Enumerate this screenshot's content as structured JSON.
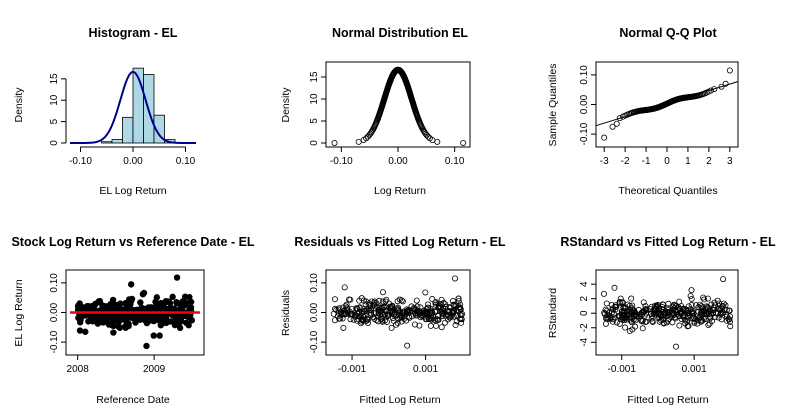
{
  "chart_data": [
    {
      "type": "histogram",
      "title": "Histogram -  EL",
      "xlabel": "EL Log Return",
      "ylabel": "Density",
      "xlim": [
        -0.12,
        0.12
      ],
      "ylim": [
        0,
        18
      ],
      "xticks": [
        -0.1,
        0.0,
        0.1
      ],
      "xtick_labels": [
        "-0.10",
        "0.00",
        "0.10"
      ],
      "yticks": [
        0,
        5,
        10,
        15
      ],
      "ytick_labels": [
        "0",
        "5",
        "10",
        "15"
      ],
      "bins": [
        {
          "x0": -0.06,
          "x1": -0.04,
          "density": 0.3
        },
        {
          "x0": -0.04,
          "x1": -0.02,
          "density": 0.8
        },
        {
          "x0": -0.02,
          "x1": 0.0,
          "density": 6.0
        },
        {
          "x0": 0.0,
          "x1": 0.02,
          "density": 17.5
        },
        {
          "x0": 0.02,
          "x1": 0.04,
          "density": 16.0
        },
        {
          "x0": 0.04,
          "x1": 0.06,
          "density": 6.5
        },
        {
          "x0": 0.06,
          "x1": 0.08,
          "density": 0.8
        }
      ],
      "curve": {
        "type": "normal",
        "mean": 0.0,
        "sd": 0.024
      },
      "colors": {
        "bars": "#add8e6",
        "curve": "#00008b"
      }
    },
    {
      "type": "scatter",
      "title": "Normal Distribution EL",
      "xlabel": "Log Return",
      "ylabel": "Density",
      "xlim": [
        -0.12,
        0.12
      ],
      "ylim": [
        0,
        17.5
      ],
      "xticks": [
        -0.1,
        0.0,
        0.1
      ],
      "xtick_labels": [
        "-0.10",
        "0.00",
        "0.10"
      ],
      "yticks": [
        0,
        5,
        10,
        15
      ],
      "ytick_labels": [
        "0",
        "5",
        "10",
        "15"
      ],
      "distribution": {
        "mean": 0.0,
        "sd": 0.024
      },
      "x_points": [
        -0.112,
        0.115
      ],
      "grid_points": 260,
      "marker": "open-circle"
    },
    {
      "type": "scatter",
      "title": "Normal Q-Q Plot",
      "xlabel": "Theoretical Quantiles",
      "ylabel": "Sample Quantiles",
      "xlim": [
        -3.2,
        3.2
      ],
      "ylim": [
        -0.13,
        0.13
      ],
      "xticks": [
        -3,
        -2,
        -1,
        0,
        1,
        2,
        3
      ],
      "xtick_labels": [
        "-3",
        "-2",
        "-1",
        "0",
        "1",
        "2",
        "3"
      ],
      "yticks": [
        -0.1,
        0.0,
        0.1
      ],
      "ytick_labels": [
        "-0.10",
        "0.00",
        "0.10"
      ],
      "reference_line": {
        "intercept": 0.003,
        "slope": 0.022
      },
      "extreme_points": [
        [
          -3.0,
          -0.112
        ],
        [
          -2.6,
          -0.075
        ],
        [
          -2.4,
          -0.065
        ],
        [
          2.6,
          0.06
        ],
        [
          2.8,
          0.07
        ],
        [
          3.0,
          0.115
        ]
      ],
      "n_points": 140,
      "marker": "open-circle"
    },
    {
      "type": "scatter",
      "title": "Stock Log Return vs Reference Date - EL",
      "xlabel": "Reference Date",
      "ylabel": "EL Log Return",
      "xlim": [
        2007.9,
        2009.6
      ],
      "ylim": [
        -0.13,
        0.13
      ],
      "xticks": [
        2008,
        2009
      ],
      "xtick_labels": [
        "2008",
        "2009"
      ],
      "yticks": [
        -0.1,
        0.0,
        0.1
      ],
      "ytick_labels": [
        "-0.10",
        "0.00",
        "0.10"
      ],
      "x_range": [
        2008.0,
        2009.5
      ],
      "extreme_points": [
        [
          2008.1,
          -0.065
        ],
        [
          2008.7,
          0.095
        ],
        [
          2009.3,
          0.118
        ],
        [
          2008.9,
          -0.113
        ]
      ],
      "n_points": 330,
      "fit_line": {
        "intercept": 0.0,
        "slope": 0.0,
        "color": "#ff0000"
      },
      "marker": "filled-circle"
    },
    {
      "type": "scatter",
      "title": "Residuals vs Fitted Log Return - EL",
      "xlabel": "Fitted Log Return",
      "ylabel": "Residuals",
      "xlim": [
        -0.0016,
        0.0021
      ],
      "ylim": [
        -0.13,
        0.13
      ],
      "xticks": [
        -0.001,
        0.001
      ],
      "xtick_labels": [
        "-0.001",
        "0.001"
      ],
      "yticks": [
        -0.1,
        0.0,
        0.1
      ],
      "ytick_labels": [
        "-0.10",
        "0.00",
        "0.10"
      ],
      "x_range": [
        -0.0015,
        0.002
      ],
      "extreme_points": [
        [
          0.0018,
          0.115
        ],
        [
          0.0005,
          -0.112
        ],
        [
          -0.0012,
          0.085
        ]
      ],
      "n_points": 330,
      "marker": "open-circle"
    },
    {
      "type": "scatter",
      "title": "RStandard vs Fitted Log Return - EL",
      "xlabel": "Fitted Log Return",
      "ylabel": "RStandard",
      "xlim": [
        -0.0016,
        0.0021
      ],
      "ylim": [
        -5.2,
        5.4
      ],
      "xticks": [
        -0.001,
        0.001
      ],
      "xtick_labels": [
        "-0.001",
        "0.001"
      ],
      "yticks": [
        -4,
        -2,
        0,
        2,
        4
      ],
      "ytick_labels": [
        "-4",
        "-2",
        "0",
        "2",
        "4"
      ],
      "x_range": [
        -0.0015,
        0.002
      ],
      "extreme_points": [
        [
          0.0018,
          4.7
        ],
        [
          0.0005,
          -4.6
        ],
        [
          -0.0012,
          3.5
        ]
      ],
      "n_points": 330,
      "marker": "open-circle"
    }
  ]
}
